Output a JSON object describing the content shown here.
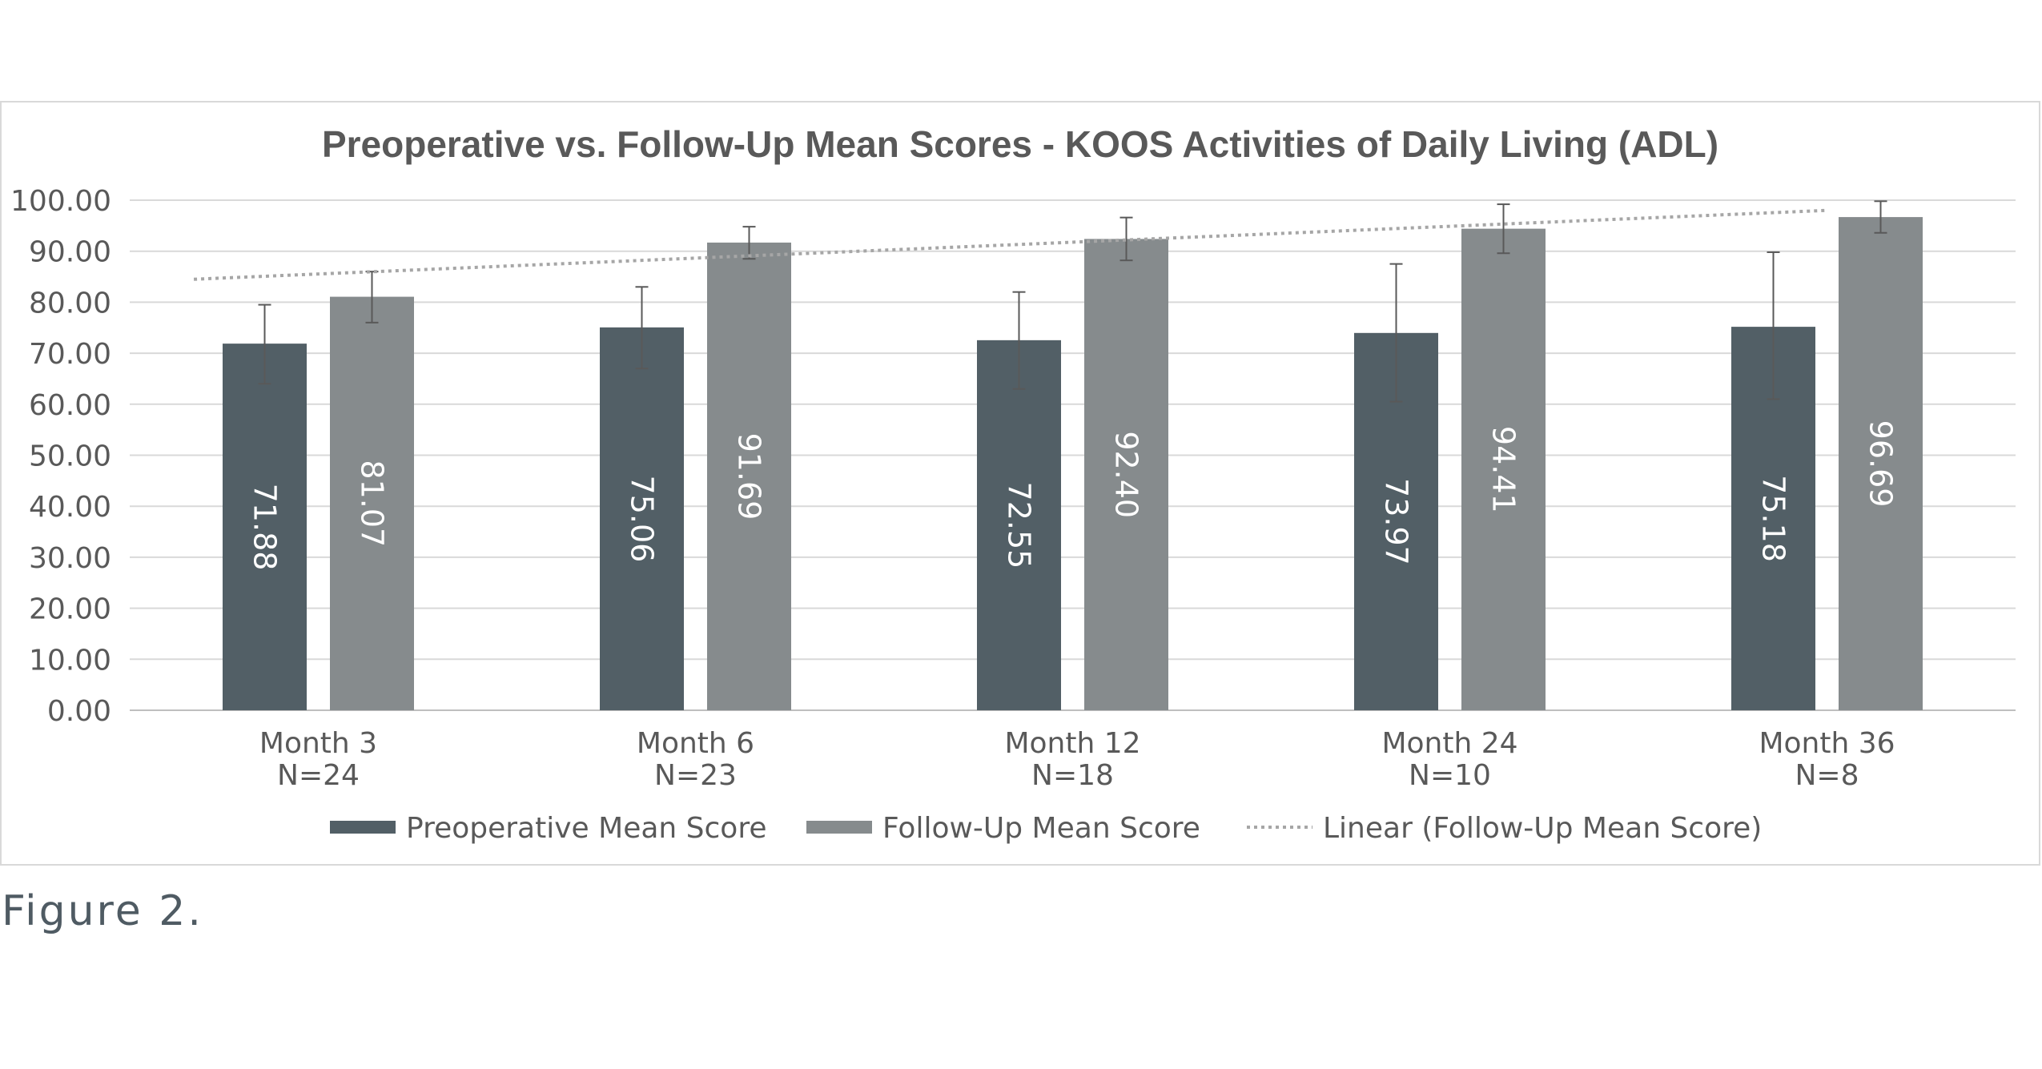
{
  "caption": "Figure 2.",
  "chart_data": {
    "type": "bar",
    "title": "Preoperative vs. Follow-Up Mean Scores - KOOS Activities of Daily Living (ADL)",
    "xlabel": "",
    "ylabel": "",
    "ylim": [
      0,
      100
    ],
    "ytick_step": 10,
    "ytick_labels": [
      "0.00",
      "10.00",
      "20.00",
      "30.00",
      "40.00",
      "50.00",
      "60.00",
      "70.00",
      "80.00",
      "90.00",
      "100.00"
    ],
    "grid": true,
    "legend_position": "bottom",
    "categories": [
      {
        "label": "Month 3",
        "n": "N=24"
      },
      {
        "label": "Month 6",
        "n": "N=23"
      },
      {
        "label": "Month 12",
        "n": "N=18"
      },
      {
        "label": "Month 24",
        "n": "N=10"
      },
      {
        "label": "Month 36",
        "n": "N=8"
      }
    ],
    "series": [
      {
        "name": "Preoperative Mean Score",
        "color": "#525f66",
        "values": [
          71.88,
          75.06,
          72.55,
          73.97,
          75.18
        ],
        "labels": [
          "71.88",
          "75.06",
          "72.55",
          "73.97",
          "75.18"
        ],
        "error_low": [
          64.0,
          67.0,
          63.0,
          60.5,
          61.0
        ],
        "error_high": [
          79.5,
          83.0,
          82.0,
          87.5,
          89.8
        ]
      },
      {
        "name": "Follow-Up Mean Score",
        "color": "#868b8d",
        "values": [
          81.07,
          91.69,
          92.4,
          94.41,
          96.69
        ],
        "labels": [
          "81.07",
          "91.69",
          "92.40",
          "94.41",
          "96.69"
        ],
        "error_low": [
          76.0,
          88.5,
          88.2,
          89.6,
          93.6
        ],
        "error_high": [
          86.0,
          94.8,
          96.6,
          99.2,
          99.8
        ]
      }
    ],
    "trendline": {
      "name": "Linear (Follow-Up Mean Score)",
      "color": "#a6a6a6",
      "start": 84.5,
      "end": 98.0
    }
  }
}
